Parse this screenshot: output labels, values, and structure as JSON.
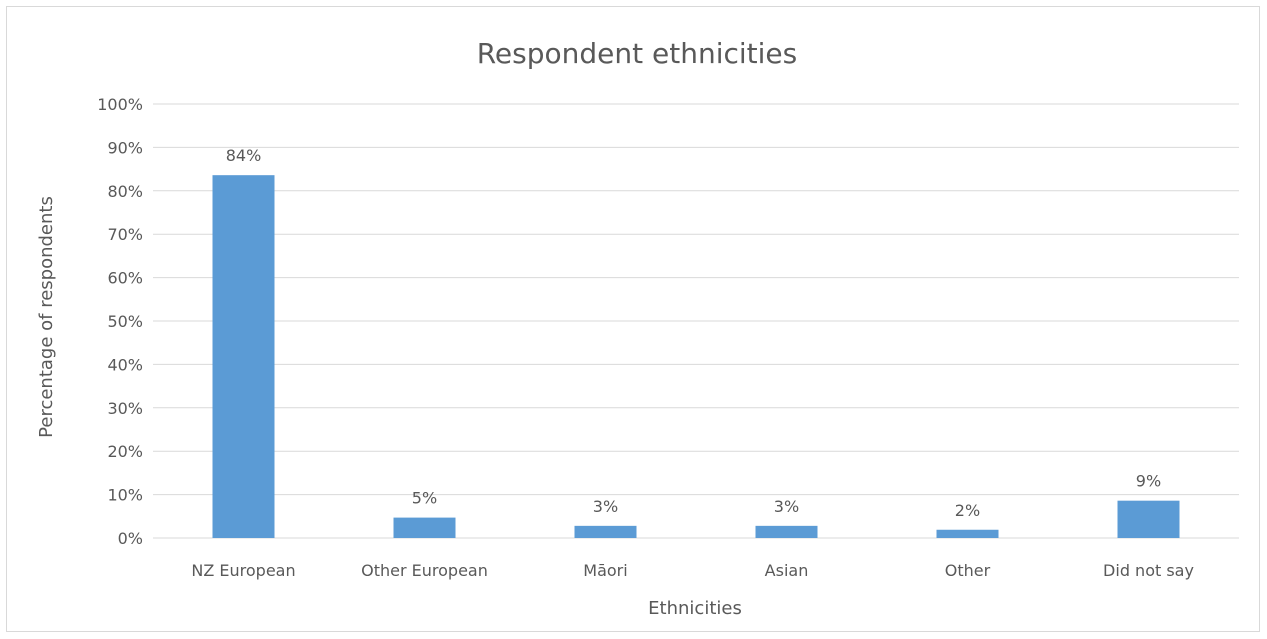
{
  "chart_data": {
    "type": "bar",
    "title": "Respondent ethnicities",
    "xlabel": "Ethnicities",
    "ylabel": "Percentage of respondents",
    "categories": [
      "NZ European",
      "Other European",
      "Māori",
      "Asian",
      "Other",
      "Did not say"
    ],
    "values": [
      83.6,
      4.7,
      2.8,
      2.8,
      1.9,
      8.6
    ],
    "data_labels": [
      "84%",
      "5%",
      "3%",
      "3%",
      "2%",
      "9%"
    ],
    "ylim": [
      0,
      100
    ],
    "yticks": [
      "0%",
      "10%",
      "20%",
      "30%",
      "40%",
      "50%",
      "60%",
      "70%",
      "80%",
      "90%",
      "100%"
    ],
    "grid": true,
    "legend": "none",
    "bar_color": "#5b9bd5"
  }
}
